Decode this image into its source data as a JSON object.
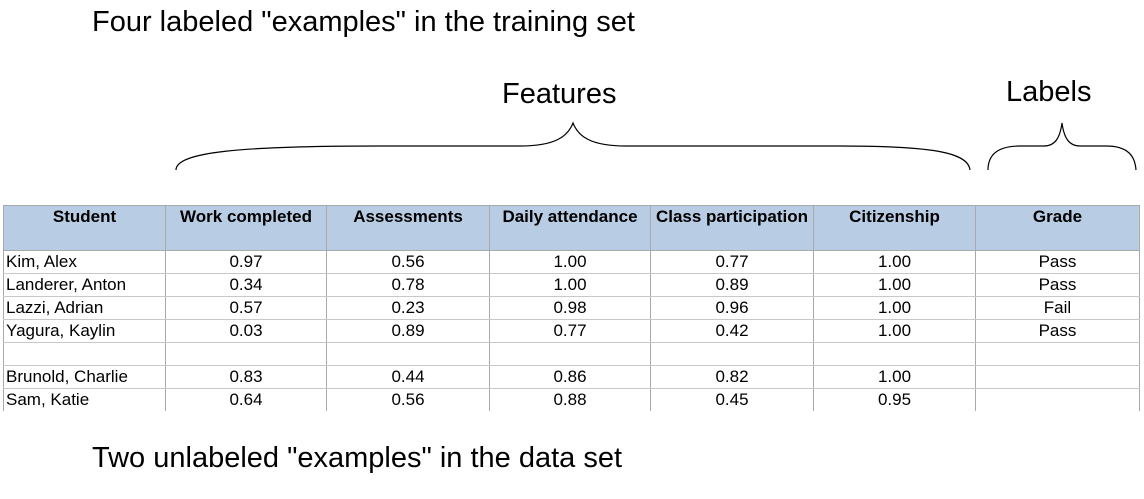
{
  "captions": {
    "top": "Four labeled \"examples\" in the training set",
    "bottom": "Two unlabeled \"examples\" in the data set"
  },
  "groups": {
    "features": "Features",
    "labels": "Labels"
  },
  "table": {
    "header_color": "#b8cce4",
    "columns": [
      "Student",
      "Work completed",
      "Assessments",
      "Daily attendance",
      "Class participation",
      "Citizenship",
      "Grade"
    ],
    "labeled_rows": [
      [
        "Kim, Alex",
        "0.97",
        "0.56",
        "1.00",
        "0.77",
        "1.00",
        "Pass"
      ],
      [
        "Landerer, Anton",
        "0.34",
        "0.78",
        "1.00",
        "0.89",
        "1.00",
        "Pass"
      ],
      [
        "Lazzi, Adrian",
        "0.57",
        "0.23",
        "0.98",
        "0.96",
        "1.00",
        "Fail"
      ],
      [
        "Yagura, Kaylin",
        "0.03",
        "0.89",
        "0.77",
        "0.42",
        "1.00",
        "Pass"
      ]
    ],
    "unlabeled_rows": [
      [
        "Brunold, Charlie",
        "0.83",
        "0.44",
        "0.86",
        "0.82",
        "1.00",
        ""
      ],
      [
        "Sam, Katie",
        "0.64",
        "0.56",
        "0.88",
        "0.45",
        "0.95",
        ""
      ]
    ]
  }
}
